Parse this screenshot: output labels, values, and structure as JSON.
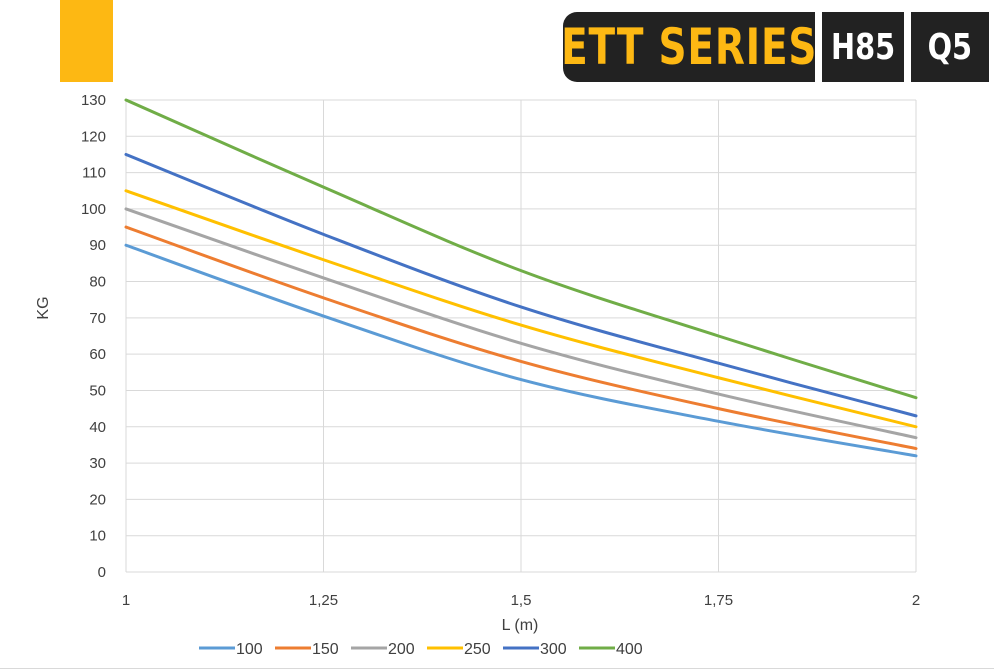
{
  "header": {
    "series_label": "ETT SERIES",
    "model_label": "H85",
    "class_label": "Q5",
    "accent_color": "#FDB813",
    "badge_color": "#222222"
  },
  "chart_data": {
    "type": "line",
    "title": "",
    "xlabel": "L (m)",
    "ylabel": "KG",
    "xlim": [
      1,
      2
    ],
    "ylim": [
      0,
      130
    ],
    "x_ticks": [
      1,
      1.25,
      1.5,
      1.75,
      2
    ],
    "x_tick_labels": [
      "1",
      "1,25",
      "1,5",
      "1,75",
      "2"
    ],
    "y_ticks": [
      0,
      10,
      20,
      30,
      40,
      50,
      60,
      70,
      80,
      90,
      100,
      110,
      120,
      130
    ],
    "grid": true,
    "legend_position": "bottom",
    "x": [
      1,
      1.25,
      1.5,
      1.75,
      2
    ],
    "series": [
      {
        "name": "100",
        "color": "#5B9BD5",
        "values": [
          90,
          70.5,
          53,
          41.5,
          32
        ]
      },
      {
        "name": "150",
        "color": "#ED7D31",
        "values": [
          95,
          75.5,
          58,
          45,
          34
        ]
      },
      {
        "name": "200",
        "color": "#A5A5A5",
        "values": [
          100,
          81,
          63,
          49,
          37
        ]
      },
      {
        "name": "250",
        "color": "#FFC000",
        "values": [
          105,
          86,
          68,
          53.5,
          40
        ]
      },
      {
        "name": "300",
        "color": "#4472C4",
        "values": [
          115,
          93,
          73,
          57.5,
          43
        ]
      },
      {
        "name": "400",
        "color": "#70AD47",
        "values": [
          130,
          106,
          83,
          65,
          48
        ]
      }
    ]
  }
}
